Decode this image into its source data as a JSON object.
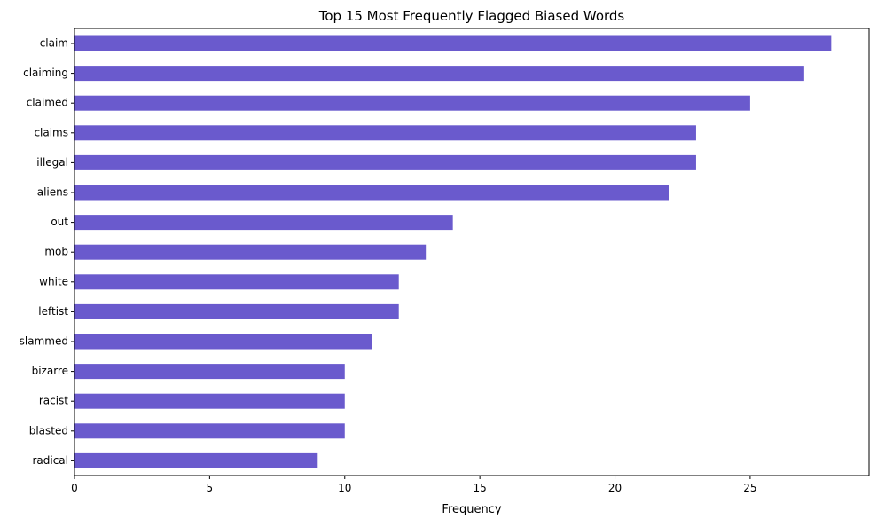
{
  "chart_data": {
    "type": "bar",
    "orientation": "horizontal",
    "title": "Top 15 Most Frequently Flagged Biased Words",
    "xlabel": "Frequency",
    "ylabel": "",
    "categories": [
      "claim",
      "claiming",
      "claimed",
      "claims",
      "illegal",
      "aliens",
      "out",
      "mob",
      "white",
      "leftist",
      "slammed",
      "bizarre",
      "racist",
      "blasted",
      "radical"
    ],
    "values": [
      28,
      27,
      25,
      23,
      23,
      22,
      14,
      13,
      12,
      12,
      11,
      10,
      10,
      10,
      9
    ],
    "xlim": [
      0,
      29.4
    ],
    "xticks": [
      0,
      5,
      10,
      15,
      20,
      25
    ],
    "xtick_labels": [
      "0",
      "5",
      "10",
      "15",
      "20",
      "25"
    ],
    "grid": false,
    "legend": "none",
    "bar_color": "#6a5acd"
  }
}
